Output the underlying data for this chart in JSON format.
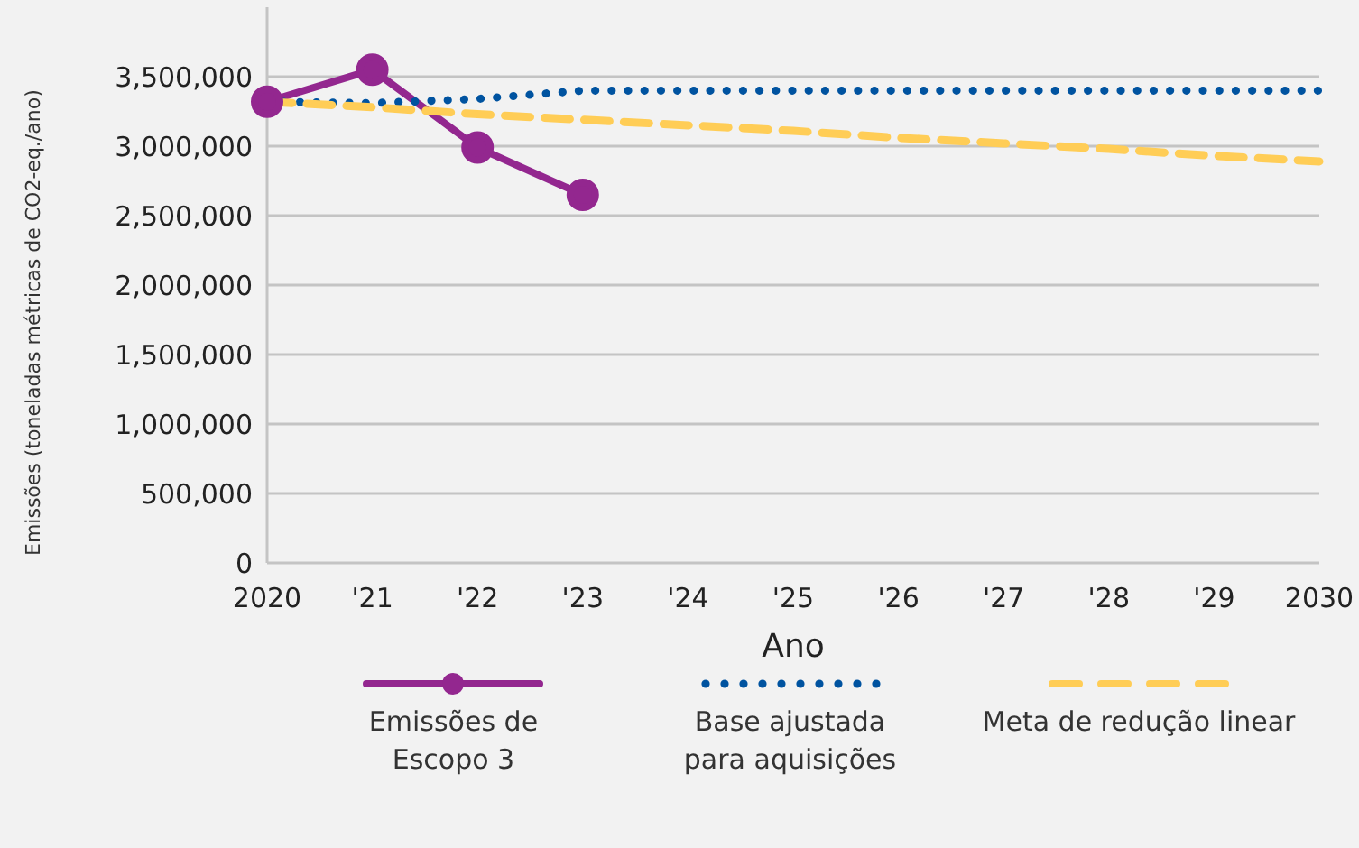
{
  "chart_data": {
    "type": "line",
    "xlabel": "Ano",
    "ylabel": "Emissões (toneladas métricas de CO2-eq./ano)",
    "categories": [
      "2020",
      "'21",
      "'22",
      "'23",
      "'24",
      "'25",
      "'26",
      "'27",
      "'28",
      "'29",
      "2030"
    ],
    "ylim": [
      0,
      4000000
    ],
    "yticks": [
      {
        "value": 0,
        "label": "0"
      },
      {
        "value": 500000,
        "label": "500,000"
      },
      {
        "value": 1000000,
        "label": "1,000,000"
      },
      {
        "value": 1500000,
        "label": "1,500,000"
      },
      {
        "value": 2000000,
        "label": "2,000,000"
      },
      {
        "value": 2500000,
        "label": "2,500,000"
      },
      {
        "value": 3000000,
        "label": "3,000,000"
      },
      {
        "value": 3500000,
        "label": "3,500,000"
      }
    ],
    "grid": "y",
    "legend": "bottom",
    "series": [
      {
        "name": "Emissões de Escopo 3",
        "color": "#93278f",
        "marker": "circle",
        "line_style": "solid",
        "values": [
          3320000,
          3550000,
          2990000,
          2650000,
          null,
          null,
          null,
          null,
          null,
          null,
          null
        ]
      },
      {
        "name": "Base ajustada para aquisições",
        "color": "#0053a0",
        "marker": "none",
        "line_style": "dotted",
        "values": [
          3320000,
          3310000,
          3340000,
          3400000,
          3400000,
          3400000,
          3400000,
          3400000,
          3400000,
          3400000,
          3400000
        ]
      },
      {
        "name": "Meta de redução linear",
        "color": "#ffcd56",
        "marker": "none",
        "line_style": "dashed",
        "values": [
          3320000,
          3280000,
          3230000,
          3190000,
          3150000,
          3110000,
          3060000,
          3020000,
          2980000,
          2930000,
          2890000
        ]
      }
    ]
  }
}
